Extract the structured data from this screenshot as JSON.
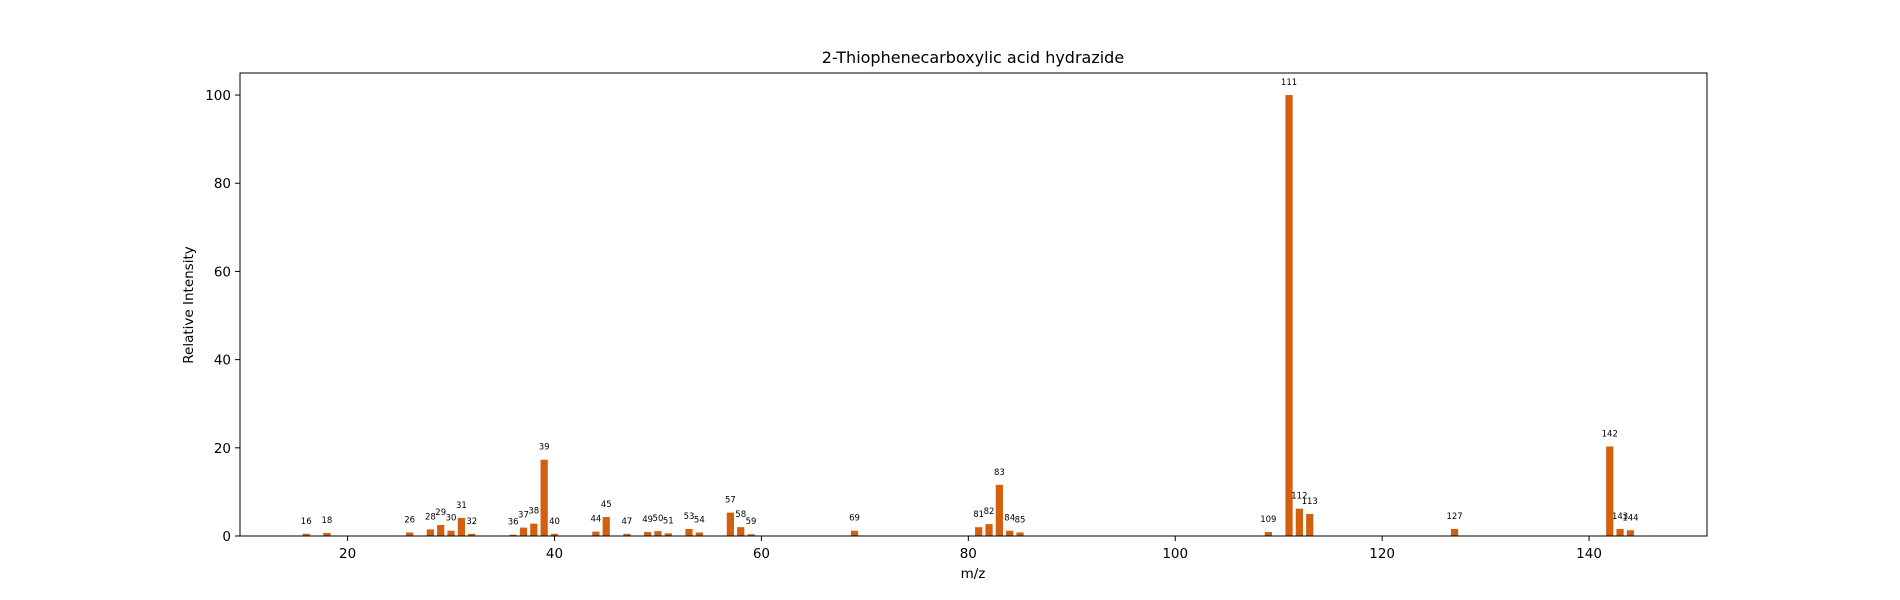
{
  "chart_data": {
    "type": "bar",
    "title": "2-Thiophenecarboxylic acid hydrazide",
    "xlabel": "m/z",
    "ylabel": "Relative Intensity",
    "xlim": [
      9.6,
      151.4
    ],
    "ylim": [
      0,
      105
    ],
    "xticks": [
      20,
      40,
      60,
      80,
      100,
      120,
      140
    ],
    "yticks": [
      0,
      20,
      40,
      60,
      80,
      100
    ],
    "grid": false,
    "bar_color": "#d2600f",
    "points": [
      {
        "x": 16,
        "y": 0.5
      },
      {
        "x": 18,
        "y": 0.7
      },
      {
        "x": 26,
        "y": 0.8
      },
      {
        "x": 28,
        "y": 1.5
      },
      {
        "x": 29,
        "y": 2.5
      },
      {
        "x": 30,
        "y": 1.2
      },
      {
        "x": 31,
        "y": 4.1
      },
      {
        "x": 32,
        "y": 0.5
      },
      {
        "x": 36,
        "y": 0.3
      },
      {
        "x": 37,
        "y": 1.9
      },
      {
        "x": 38,
        "y": 2.8
      },
      {
        "x": 39,
        "y": 17.3
      },
      {
        "x": 40,
        "y": 0.5
      },
      {
        "x": 44,
        "y": 1.0
      },
      {
        "x": 45,
        "y": 4.3
      },
      {
        "x": 47,
        "y": 0.5
      },
      {
        "x": 49,
        "y": 0.9
      },
      {
        "x": 50,
        "y": 1.1
      },
      {
        "x": 51,
        "y": 0.6
      },
      {
        "x": 53,
        "y": 1.6
      },
      {
        "x": 54,
        "y": 0.8
      },
      {
        "x": 57,
        "y": 5.3
      },
      {
        "x": 58,
        "y": 2.0
      },
      {
        "x": 59,
        "y": 0.4
      },
      {
        "x": 69,
        "y": 1.2
      },
      {
        "x": 81,
        "y": 2.0
      },
      {
        "x": 82,
        "y": 2.7
      },
      {
        "x": 83,
        "y": 11.6
      },
      {
        "x": 84,
        "y": 1.2
      },
      {
        "x": 85,
        "y": 0.8
      },
      {
        "x": 109,
        "y": 0.9
      },
      {
        "x": 111,
        "y": 100.0
      },
      {
        "x": 112,
        "y": 6.2
      },
      {
        "x": 113,
        "y": 5.0
      },
      {
        "x": 127,
        "y": 1.6
      },
      {
        "x": 142,
        "y": 20.3
      },
      {
        "x": 143,
        "y": 1.6
      },
      {
        "x": 144,
        "y": 1.3
      }
    ]
  }
}
